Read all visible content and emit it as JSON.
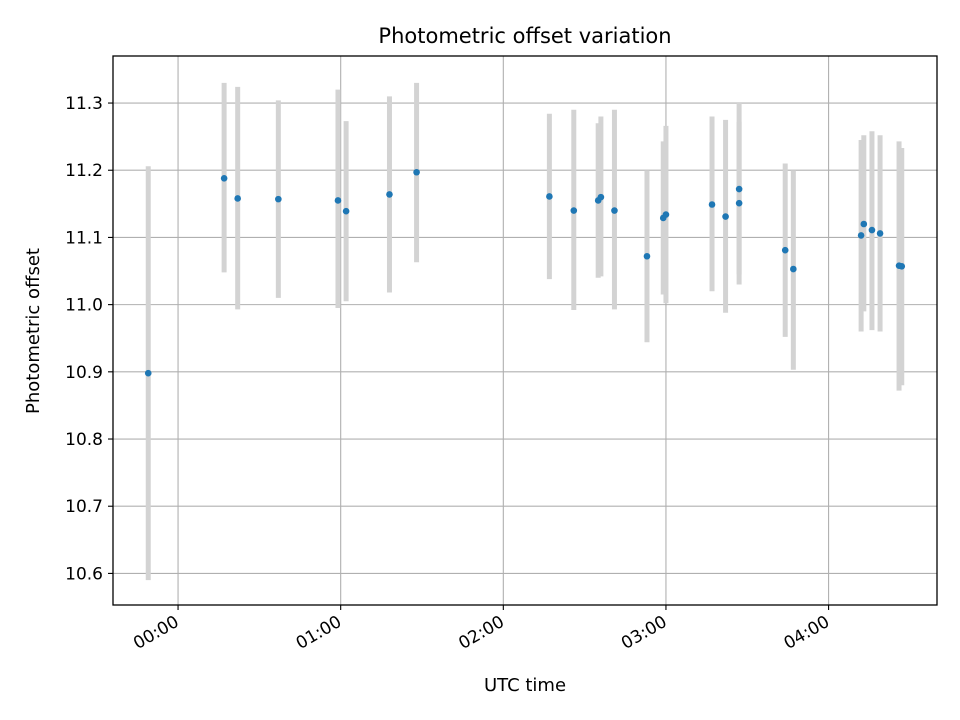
{
  "chart_data": {
    "type": "scatter",
    "title": "Photometric offset variation",
    "xlabel": "UTC time",
    "ylabel": "Photometric offset",
    "grid": true,
    "x_unit": "hours UTC",
    "xlim": [
      "23:36",
      "04:40"
    ],
    "ylim": [
      10.553,
      11.37
    ],
    "x_ticks": [
      "00:00",
      "01:00",
      "02:00",
      "03:00",
      "04:00"
    ],
    "x_tick_values": [
      "00:00",
      "01:00",
      "02:00",
      "03:00",
      "04:00"
    ],
    "y_ticks": [
      "10.6",
      "10.7",
      "10.8",
      "10.9",
      "11.0",
      "11.1",
      "11.2",
      "11.3"
    ],
    "y_tick_values": [
      10.6,
      10.7,
      10.8,
      10.9,
      11.0,
      11.1,
      11.2,
      11.3
    ],
    "point_color": "#1f77b4",
    "errorbar_color": "#d3d3d3",
    "series": [
      {
        "points": [
          {
            "x": "23:49",
            "y": 10.898,
            "low": 10.59,
            "high": 11.206
          },
          {
            "x": "00:17",
            "y": 11.188,
            "low": 11.048,
            "high": 11.33
          },
          {
            "x": "00:22",
            "y": 11.158,
            "low": 10.993,
            "high": 11.324
          },
          {
            "x": "00:37",
            "y": 11.157,
            "low": 11.01,
            "high": 11.304
          },
          {
            "x": "00:59",
            "y": 11.155,
            "low": 10.995,
            "high": 11.32
          },
          {
            "x": "01:02",
            "y": 11.139,
            "low": 11.005,
            "high": 11.273
          },
          {
            "x": "01:18",
            "y": 11.164,
            "low": 11.018,
            "high": 11.31
          },
          {
            "x": "01:28",
            "y": 11.197,
            "low": 11.063,
            "high": 11.33
          },
          {
            "x": "02:17",
            "y": 11.161,
            "low": 11.038,
            "high": 11.284
          },
          {
            "x": "02:26",
            "y": 11.14,
            "low": 10.992,
            "high": 11.29
          },
          {
            "x": "02:35",
            "y": 11.155,
            "low": 11.04,
            "high": 11.27
          },
          {
            "x": "02:36",
            "y": 11.16,
            "low": 11.042,
            "high": 11.28
          },
          {
            "x": "02:41",
            "y": 11.14,
            "low": 10.993,
            "high": 11.29
          },
          {
            "x": "02:53",
            "y": 11.072,
            "low": 10.944,
            "high": 11.2
          },
          {
            "x": "02:59",
            "y": 11.129,
            "low": 11.015,
            "high": 11.243
          },
          {
            "x": "03:00",
            "y": 11.134,
            "low": 11.002,
            "high": 11.266
          },
          {
            "x": "03:17",
            "y": 11.149,
            "low": 11.02,
            "high": 11.28
          },
          {
            "x": "03:22",
            "y": 11.131,
            "low": 10.988,
            "high": 11.275
          },
          {
            "x": "03:27",
            "y": 11.172,
            "low": 11.045,
            "high": 11.3
          },
          {
            "x": "03:27",
            "y": 11.151,
            "low": 11.03,
            "high": 11.272
          },
          {
            "x": "03:44",
            "y": 11.081,
            "low": 10.952,
            "high": 11.21
          },
          {
            "x": "03:47",
            "y": 11.053,
            "low": 10.903,
            "high": 11.2
          },
          {
            "x": "04:12",
            "y": 11.103,
            "low": 10.96,
            "high": 11.245
          },
          {
            "x": "04:13",
            "y": 11.12,
            "low": 10.99,
            "high": 11.252
          },
          {
            "x": "04:16",
            "y": 11.111,
            "low": 10.962,
            "high": 11.258
          },
          {
            "x": "04:19",
            "y": 11.106,
            "low": 10.96,
            "high": 11.252
          },
          {
            "x": "04:26",
            "y": 11.058,
            "low": 10.872,
            "high": 11.243
          },
          {
            "x": "04:27",
            "y": 11.057,
            "low": 10.88,
            "high": 11.233
          }
        ]
      }
    ]
  }
}
